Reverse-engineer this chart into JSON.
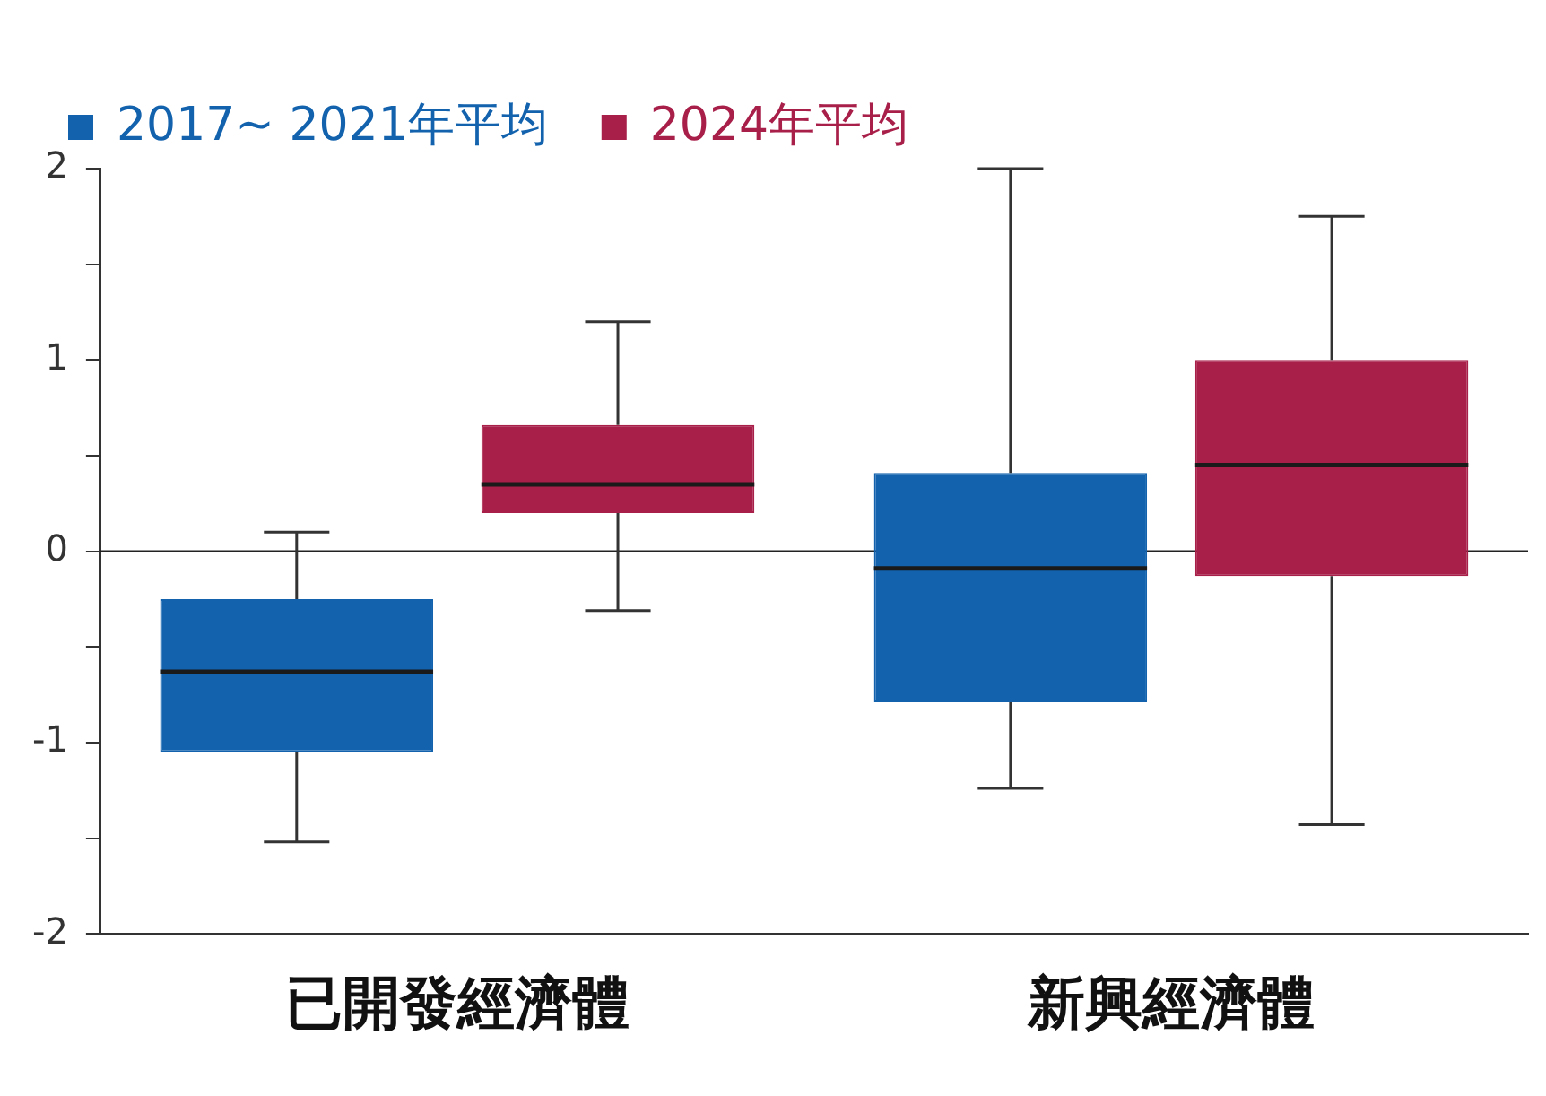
{
  "chart_data": {
    "type": "box",
    "categories": [
      "已開發經濟體",
      "新興經濟體"
    ],
    "series": [
      {
        "name": "2017~ 2021年平均",
        "color": "#1262ae",
        "boxes": [
          {
            "low": -1.52,
            "q1": -1.05,
            "median": -0.63,
            "q3": -0.25,
            "high": 0.1
          },
          {
            "low": -1.24,
            "q1": -0.79,
            "median": -0.09,
            "q3": 0.41,
            "high": 2.0
          }
        ]
      },
      {
        "name": "2024年平均",
        "color": "#a81f4a",
        "boxes": [
          {
            "low": -0.31,
            "q1": 0.2,
            "median": 0.35,
            "q3": 0.66,
            "high": 1.2
          },
          {
            "low": -1.43,
            "q1": -0.13,
            "median": 0.45,
            "q3": 1.0,
            "high": 1.75
          }
        ]
      }
    ],
    "ylim": [
      -2,
      2
    ],
    "yticks": [
      -2,
      {
        "value": -1.5,
        "label": null
      },
      -1,
      {
        "value": -0.5,
        "label": null
      },
      0,
      {
        "value": 0.5,
        "label": null
      },
      1,
      {
        "value": 1.5,
        "label": null
      },
      2
    ],
    "ref_lines": [
      {
        "axis": "y",
        "value": 0
      }
    ],
    "legend": "top left",
    "grid": false
  }
}
